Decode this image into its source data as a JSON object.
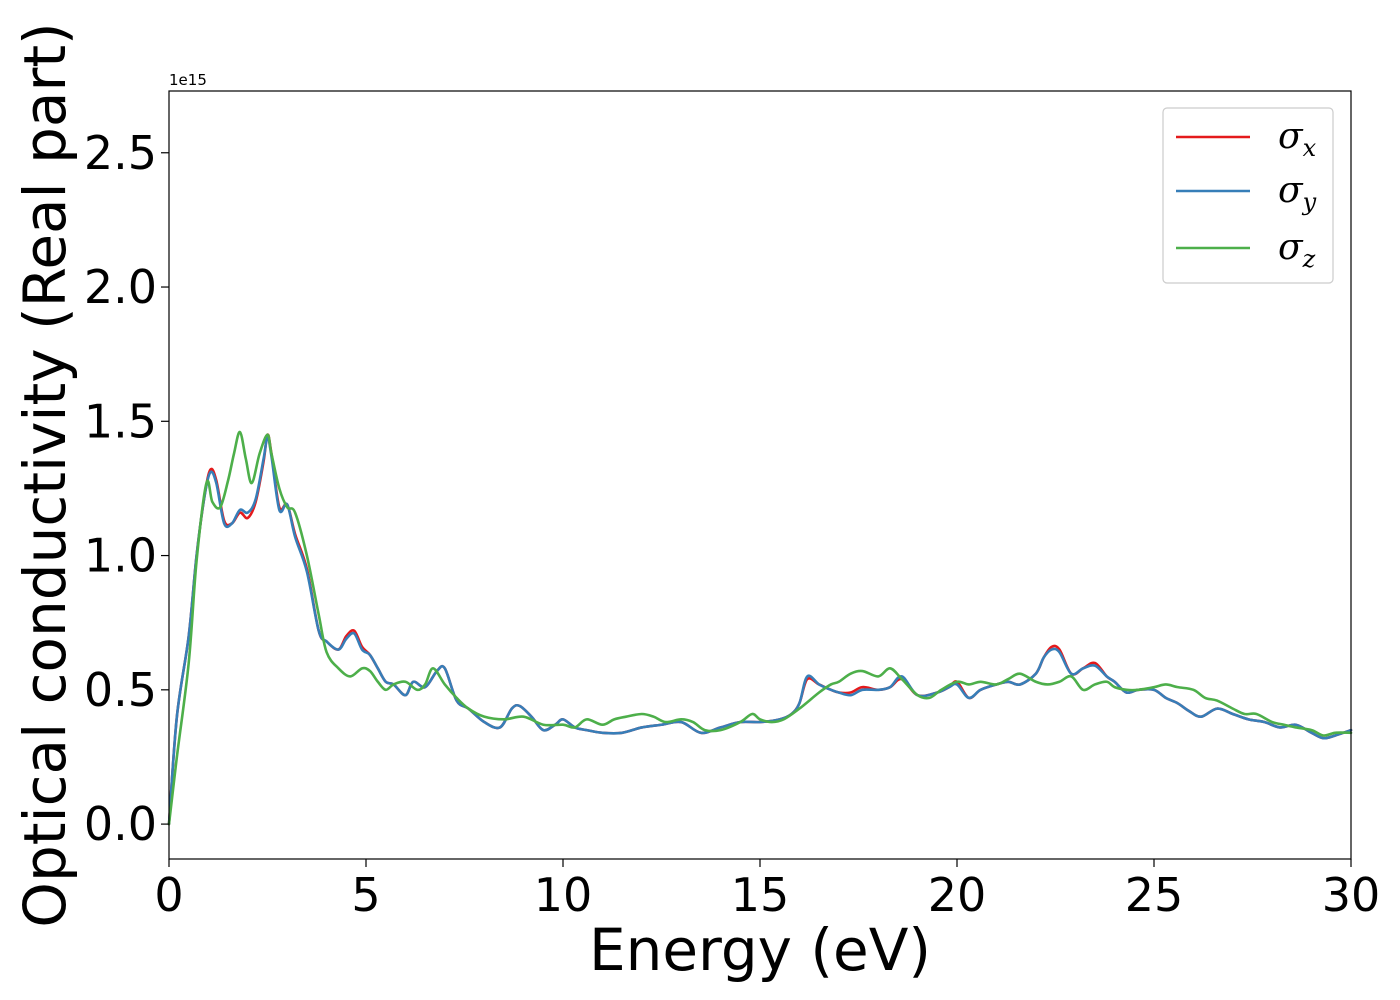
{
  "chart_data": {
    "type": "line",
    "title": "",
    "xlabel": "Energy (eV)",
    "ylabel": "Optical conductivity (Real part)",
    "y_offset_label": "1e15",
    "xlim": [
      0,
      30
    ],
    "ylim": [
      -0.13,
      2.73
    ],
    "xticks": [
      0,
      5,
      10,
      15,
      20,
      25,
      30
    ],
    "xtick_labels": [
      "0",
      "5",
      "10",
      "15",
      "20",
      "25",
      "30"
    ],
    "yticks": [
      0.0,
      0.5,
      1.0,
      1.5,
      2.0,
      2.5
    ],
    "ytick_labels": [
      "0.0",
      "0.5",
      "1.0",
      "1.5",
      "2.0",
      "2.5"
    ],
    "grid": false,
    "legend_position": "top-right",
    "series": [
      {
        "name": "σx",
        "legend_symbol": "σ",
        "legend_subscript": "x",
        "color": "#e41a1c",
        "x": [
          0,
          0.2,
          0.5,
          0.7,
          0.9,
          1.05,
          1.2,
          1.4,
          1.6,
          1.8,
          2.0,
          2.2,
          2.4,
          2.5,
          2.6,
          2.8,
          3.0,
          3.2,
          3.5,
          3.8,
          4.0,
          4.3,
          4.5,
          4.7,
          4.9,
          5.1,
          5.3,
          5.5,
          5.7,
          6.0,
          6.2,
          6.5,
          6.8,
          7.0,
          7.3,
          7.6,
          8.0,
          8.4,
          8.7,
          8.9,
          9.2,
          9.5,
          9.8,
          10.0,
          10.3,
          10.6,
          11.0,
          11.5,
          12.0,
          12.5,
          13.0,
          13.5,
          14.0,
          14.5,
          15.0,
          15.5,
          15.8,
          16.0,
          16.2,
          16.5,
          16.8,
          17.0,
          17.3,
          17.6,
          18.0,
          18.3,
          18.6,
          19.0,
          19.5,
          19.8,
          20.0,
          20.3,
          20.6,
          21.0,
          21.3,
          21.6,
          22.0,
          22.2,
          22.4,
          22.6,
          22.9,
          23.2,
          23.5,
          23.8,
          24.0,
          24.3,
          24.6,
          25.0,
          25.3,
          25.6,
          25.9,
          26.2,
          26.6,
          27.0,
          27.4,
          27.8,
          28.2,
          28.6,
          29.0,
          29.3,
          29.6,
          30.0
        ],
        "y": [
          0.0,
          0.4,
          0.7,
          1.0,
          1.22,
          1.32,
          1.28,
          1.13,
          1.12,
          1.16,
          1.14,
          1.2,
          1.35,
          1.45,
          1.38,
          1.18,
          1.19,
          1.08,
          0.95,
          0.72,
          0.68,
          0.65,
          0.7,
          0.72,
          0.66,
          0.63,
          0.58,
          0.53,
          0.52,
          0.48,
          0.53,
          0.51,
          0.57,
          0.58,
          0.46,
          0.43,
          0.38,
          0.36,
          0.43,
          0.44,
          0.4,
          0.35,
          0.37,
          0.39,
          0.36,
          0.35,
          0.34,
          0.34,
          0.36,
          0.37,
          0.38,
          0.34,
          0.36,
          0.38,
          0.38,
          0.39,
          0.41,
          0.45,
          0.54,
          0.52,
          0.5,
          0.49,
          0.49,
          0.51,
          0.5,
          0.51,
          0.54,
          0.48,
          0.49,
          0.51,
          0.53,
          0.47,
          0.5,
          0.52,
          0.53,
          0.52,
          0.56,
          0.62,
          0.66,
          0.65,
          0.56,
          0.58,
          0.6,
          0.55,
          0.53,
          0.49,
          0.5,
          0.5,
          0.47,
          0.45,
          0.42,
          0.4,
          0.43,
          0.41,
          0.39,
          0.38,
          0.36,
          0.37,
          0.34,
          0.32,
          0.33,
          0.35
        ]
      },
      {
        "name": "σy",
        "legend_symbol": "σ",
        "legend_subscript": "y",
        "color": "#377eb8",
        "x": [
          0,
          0.2,
          0.5,
          0.7,
          0.9,
          1.05,
          1.2,
          1.4,
          1.6,
          1.8,
          2.0,
          2.2,
          2.4,
          2.5,
          2.6,
          2.8,
          3.0,
          3.2,
          3.5,
          3.8,
          4.0,
          4.3,
          4.5,
          4.7,
          4.9,
          5.1,
          5.3,
          5.5,
          5.7,
          6.0,
          6.2,
          6.5,
          6.8,
          7.0,
          7.3,
          7.6,
          8.0,
          8.4,
          8.7,
          8.9,
          9.2,
          9.5,
          9.8,
          10.0,
          10.3,
          10.6,
          11.0,
          11.5,
          12.0,
          12.5,
          13.0,
          13.5,
          14.0,
          14.5,
          15.0,
          15.5,
          15.8,
          16.0,
          16.2,
          16.5,
          16.8,
          17.0,
          17.3,
          17.6,
          18.0,
          18.3,
          18.6,
          19.0,
          19.5,
          19.8,
          20.0,
          20.3,
          20.6,
          21.0,
          21.3,
          21.6,
          22.0,
          22.2,
          22.4,
          22.6,
          22.9,
          23.2,
          23.5,
          23.8,
          24.0,
          24.3,
          24.6,
          25.0,
          25.3,
          25.6,
          25.9,
          26.2,
          26.6,
          27.0,
          27.4,
          27.8,
          28.2,
          28.6,
          29.0,
          29.3,
          29.6,
          30.0
        ],
        "y": [
          0.0,
          0.4,
          0.7,
          1.0,
          1.22,
          1.31,
          1.27,
          1.12,
          1.12,
          1.17,
          1.16,
          1.21,
          1.36,
          1.44,
          1.37,
          1.17,
          1.19,
          1.07,
          0.94,
          0.72,
          0.68,
          0.65,
          0.69,
          0.71,
          0.65,
          0.63,
          0.58,
          0.53,
          0.52,
          0.48,
          0.53,
          0.51,
          0.57,
          0.58,
          0.46,
          0.43,
          0.38,
          0.36,
          0.43,
          0.44,
          0.4,
          0.35,
          0.37,
          0.39,
          0.36,
          0.35,
          0.34,
          0.34,
          0.36,
          0.37,
          0.38,
          0.34,
          0.36,
          0.38,
          0.38,
          0.39,
          0.41,
          0.45,
          0.55,
          0.52,
          0.5,
          0.49,
          0.48,
          0.5,
          0.5,
          0.51,
          0.55,
          0.48,
          0.49,
          0.51,
          0.52,
          0.47,
          0.5,
          0.52,
          0.53,
          0.52,
          0.56,
          0.62,
          0.65,
          0.64,
          0.56,
          0.58,
          0.59,
          0.55,
          0.53,
          0.49,
          0.5,
          0.5,
          0.47,
          0.45,
          0.42,
          0.4,
          0.43,
          0.41,
          0.39,
          0.38,
          0.36,
          0.37,
          0.34,
          0.32,
          0.33,
          0.35
        ]
      },
      {
        "name": "σz",
        "legend_symbol": "σ",
        "legend_subscript": "z",
        "color": "#4daf4a",
        "x": [
          0,
          0.2,
          0.5,
          0.7,
          0.95,
          1.1,
          1.3,
          1.5,
          1.65,
          1.8,
          1.95,
          2.1,
          2.3,
          2.5,
          2.6,
          2.8,
          3.0,
          3.2,
          3.5,
          3.8,
          4.0,
          4.3,
          4.6,
          4.9,
          5.1,
          5.3,
          5.5,
          5.7,
          6.0,
          6.3,
          6.5,
          6.7,
          7.0,
          7.3,
          7.6,
          8.0,
          8.5,
          9.0,
          9.5,
          10.0,
          10.3,
          10.6,
          11.0,
          11.3,
          11.6,
          12.0,
          12.3,
          12.6,
          13.0,
          13.3,
          13.6,
          14.0,
          14.5,
          14.8,
          15.0,
          15.3,
          15.6,
          16.0,
          16.5,
          16.8,
          17.0,
          17.3,
          17.6,
          18.0,
          18.3,
          18.6,
          19.0,
          19.3,
          19.6,
          20.0,
          20.3,
          20.6,
          21.0,
          21.3,
          21.6,
          22.0,
          22.3,
          22.6,
          22.9,
          23.2,
          23.5,
          23.8,
          24.0,
          24.3,
          24.6,
          25.0,
          25.3,
          25.6,
          26.0,
          26.3,
          26.6,
          27.0,
          27.3,
          27.6,
          28.0,
          28.3,
          28.6,
          29.0,
          29.3,
          29.6,
          30.0
        ],
        "y": [
          0.0,
          0.25,
          0.6,
          0.98,
          1.27,
          1.2,
          1.18,
          1.28,
          1.38,
          1.46,
          1.36,
          1.27,
          1.38,
          1.45,
          1.38,
          1.25,
          1.18,
          1.16,
          1.0,
          0.78,
          0.64,
          0.58,
          0.55,
          0.58,
          0.57,
          0.53,
          0.5,
          0.52,
          0.53,
          0.5,
          0.52,
          0.58,
          0.52,
          0.47,
          0.43,
          0.4,
          0.39,
          0.4,
          0.37,
          0.37,
          0.36,
          0.39,
          0.37,
          0.39,
          0.4,
          0.41,
          0.4,
          0.38,
          0.39,
          0.38,
          0.35,
          0.35,
          0.38,
          0.41,
          0.39,
          0.38,
          0.39,
          0.43,
          0.49,
          0.52,
          0.53,
          0.56,
          0.57,
          0.55,
          0.58,
          0.54,
          0.48,
          0.47,
          0.5,
          0.53,
          0.52,
          0.53,
          0.52,
          0.54,
          0.56,
          0.53,
          0.52,
          0.53,
          0.55,
          0.5,
          0.52,
          0.53,
          0.51,
          0.5,
          0.5,
          0.51,
          0.52,
          0.51,
          0.5,
          0.47,
          0.46,
          0.43,
          0.41,
          0.41,
          0.38,
          0.37,
          0.36,
          0.35,
          0.33,
          0.34,
          0.34
        ]
      }
    ]
  }
}
